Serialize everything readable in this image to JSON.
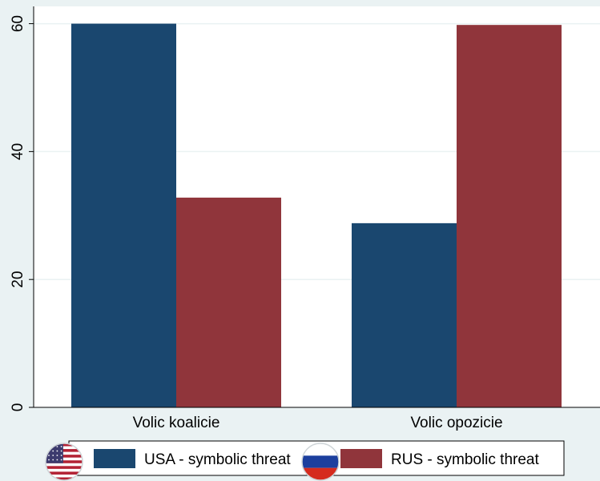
{
  "chart_data": {
    "type": "bar",
    "categories": [
      "Volic koalicie",
      "Volic opozicie"
    ],
    "series": [
      {
        "name": "USA - symbolic threat",
        "values": [
          60.0,
          28.8
        ],
        "color": "#1a476f",
        "flag": "usa-flag-icon"
      },
      {
        "name": "RUS - symbolic threat",
        "values": [
          32.8,
          59.8
        ],
        "color": "#90353b",
        "flag": "russia-flag-icon"
      }
    ],
    "y_ticks": [
      0,
      20,
      40,
      60
    ],
    "ylim": [
      0,
      62.7
    ],
    "grid": true,
    "legend_position": "bottom",
    "colors": {
      "background": "#eaf2f3",
      "plot_area": "#ffffff",
      "grid": "#eaf2f3"
    }
  }
}
